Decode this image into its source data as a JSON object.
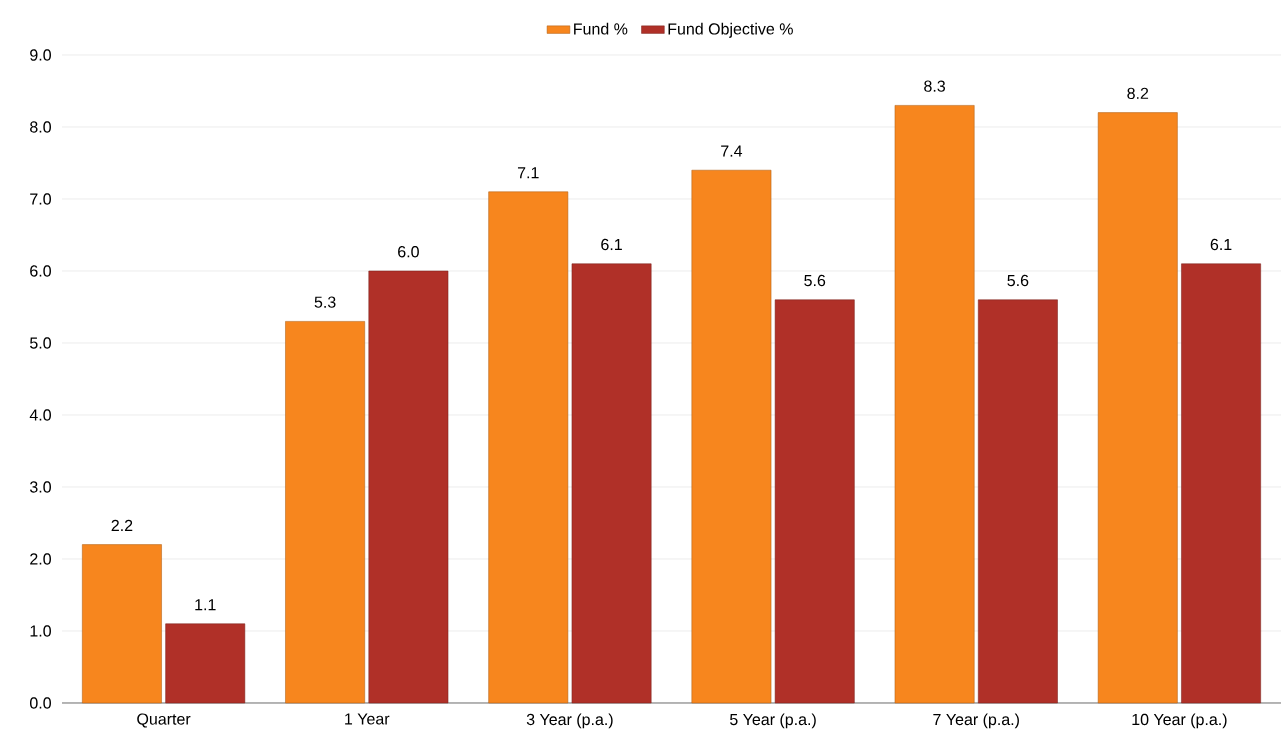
{
  "chart_data": {
    "type": "bar",
    "categories": [
      "Quarter",
      "1 Year",
      "3 Year (p.a.)",
      "5 Year (p.a.)",
      "7 Year (p.a.)",
      "10 Year (p.a.)"
    ],
    "series": [
      {
        "name": "Fund %",
        "color": "#f7861e",
        "values": [
          2.2,
          5.3,
          7.1,
          7.4,
          8.3,
          8.2
        ],
        "value_labels": [
          "2.2",
          "5.3",
          "7.1",
          "7.4",
          "8.3",
          "8.2"
        ]
      },
      {
        "name": "Fund Objective %",
        "color": "#b03028",
        "values": [
          1.1,
          6.0,
          6.1,
          5.6,
          5.6,
          6.1
        ],
        "value_labels": [
          "1.1",
          "6.0",
          "6.1",
          "5.6",
          "5.6",
          "6.1"
        ]
      }
    ],
    "ylim": [
      0,
      9
    ],
    "yticks": [
      {
        "value": 0,
        "label": "0.0"
      },
      {
        "value": 1,
        "label": "1.0"
      },
      {
        "value": 2,
        "label": "2.0"
      },
      {
        "value": 3,
        "label": "3.0"
      },
      {
        "value": 4,
        "label": "4.0"
      },
      {
        "value": 5,
        "label": "5.0"
      },
      {
        "value": 6,
        "label": "6.0"
      },
      {
        "value": 7,
        "label": "7.0"
      },
      {
        "value": 8,
        "label": "8.0"
      },
      {
        "value": 9,
        "label": "9.0"
      }
    ],
    "grid": "y",
    "legend": "top"
  }
}
